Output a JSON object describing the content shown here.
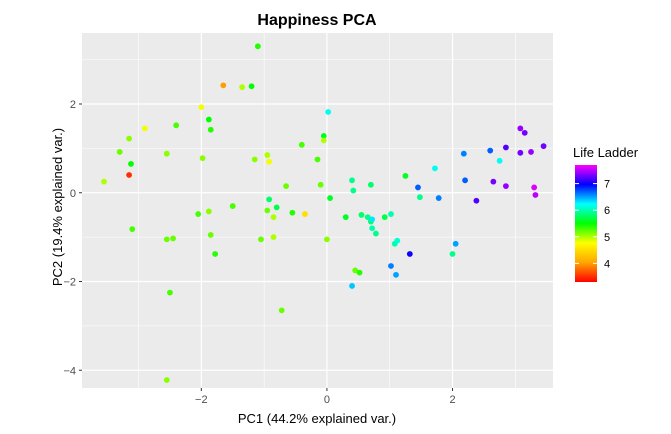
{
  "chart_data": {
    "type": "scatter",
    "title": "Happiness PCA",
    "xlabel": "PC1 (44.2% explained var.)",
    "ylabel": "PC2 (19.4% explained var.)",
    "xlim": [
      -3.9,
      3.6
    ],
    "ylim": [
      -4.4,
      3.6
    ],
    "x_ticks": [
      -2,
      0,
      2
    ],
    "y_ticks": [
      -4,
      -2,
      0,
      2
    ],
    "x_tick_labels": [
      "−2",
      "0",
      "2"
    ],
    "y_tick_labels": [
      "−4",
      "−2",
      "0",
      "2"
    ],
    "grid": true,
    "panel_background": "#ebebeb",
    "grid_color": "#ffffff",
    "legend": {
      "title": "Life Ladder",
      "position": "right",
      "range": [
        3.3,
        7.7
      ],
      "ticks": [
        4,
        5,
        6,
        7
      ],
      "tick_labels": [
        "4",
        "5",
        "6",
        "7"
      ],
      "colors": [
        "#ff0000",
        "#ffa500",
        "#ffff00",
        "#00ff00",
        "#00ffff",
        "#0000ff",
        "#ff00ff"
      ]
    },
    "points": [
      {
        "x": -3.55,
        "y": 0.25,
        "ladder": 5.0
      },
      {
        "x": -3.3,
        "y": 0.92,
        "ladder": 5.2
      },
      {
        "x": -3.15,
        "y": 1.22,
        "ladder": 5.1
      },
      {
        "x": -3.12,
        "y": 0.65,
        "ladder": 5.5
      },
      {
        "x": -3.15,
        "y": 0.4,
        "ladder": 3.5
      },
      {
        "x": -3.1,
        "y": -0.82,
        "ladder": 5.3
      },
      {
        "x": -2.9,
        "y": 1.45,
        "ladder": 4.8
      },
      {
        "x": -2.55,
        "y": 0.88,
        "ladder": 5.1
      },
      {
        "x": -2.4,
        "y": 1.52,
        "ladder": 5.3
      },
      {
        "x": -2.55,
        "y": -1.05,
        "ladder": 5.2
      },
      {
        "x": -2.45,
        "y": -1.03,
        "ladder": 5.2
      },
      {
        "x": -2.5,
        "y": -2.25,
        "ladder": 5.3
      },
      {
        "x": -2.55,
        "y": -4.22,
        "ladder": 5.1
      },
      {
        "x": -2.0,
        "y": 1.93,
        "ladder": 4.8
      },
      {
        "x": -1.98,
        "y": 0.78,
        "ladder": 5.1
      },
      {
        "x": -1.88,
        "y": 1.65,
        "ladder": 5.5
      },
      {
        "x": -1.85,
        "y": 1.42,
        "ladder": 5.4
      },
      {
        "x": -2.05,
        "y": -0.48,
        "ladder": 5.3
      },
      {
        "x": -1.88,
        "y": -0.42,
        "ladder": 5.1
      },
      {
        "x": -1.85,
        "y": -0.95,
        "ladder": 5.2
      },
      {
        "x": -1.78,
        "y": -1.38,
        "ladder": 5.4
      },
      {
        "x": -1.65,
        "y": 2.42,
        "ladder": 4.0
      },
      {
        "x": -1.5,
        "y": -0.3,
        "ladder": 5.3
      },
      {
        "x": -1.35,
        "y": 2.38,
        "ladder": 5.0
      },
      {
        "x": -1.2,
        "y": 2.4,
        "ladder": 5.5
      },
      {
        "x": -1.1,
        "y": 3.3,
        "ladder": 5.4
      },
      {
        "x": -1.15,
        "y": 0.75,
        "ladder": 5.1
      },
      {
        "x": -1.05,
        "y": -1.05,
        "ladder": 5.2
      },
      {
        "x": -0.95,
        "y": 0.85,
        "ladder": 5.0
      },
      {
        "x": -0.95,
        "y": -0.4,
        "ladder": 5.2
      },
      {
        "x": -0.85,
        "y": -0.55,
        "ladder": 5.0
      },
      {
        "x": -0.92,
        "y": 0.7,
        "ladder": 4.8
      },
      {
        "x": -0.85,
        "y": -1.0,
        "ladder": 5.0
      },
      {
        "x": -0.92,
        "y": -0.15,
        "ladder": 5.8
      },
      {
        "x": -0.8,
        "y": -0.33,
        "ladder": 5.7
      },
      {
        "x": -0.72,
        "y": -2.65,
        "ladder": 5.2
      },
      {
        "x": -0.65,
        "y": 0.15,
        "ladder": 5.2
      },
      {
        "x": -0.55,
        "y": -0.45,
        "ladder": 5.4
      },
      {
        "x": -0.35,
        "y": -0.48,
        "ladder": 4.5
      },
      {
        "x": -0.4,
        "y": 1.08,
        "ladder": 5.3
      },
      {
        "x": -0.15,
        "y": 0.75,
        "ladder": 5.3
      },
      {
        "x": -0.1,
        "y": 0.18,
        "ladder": 5.2
      },
      {
        "x": -0.05,
        "y": 1.28,
        "ladder": 5.6
      },
      {
        "x": -0.05,
        "y": 1.18,
        "ladder": 5.0
      },
      {
        "x": 0.02,
        "y": 1.82,
        "ladder": 6.2
      },
      {
        "x": 0.0,
        "y": -1.05,
        "ladder": 5.1
      },
      {
        "x": 0.05,
        "y": -0.12,
        "ladder": 5.6
      },
      {
        "x": 0.3,
        "y": -0.55,
        "ladder": 5.6
      },
      {
        "x": 0.4,
        "y": 0.28,
        "ladder": 5.9
      },
      {
        "x": 0.42,
        "y": 0.05,
        "ladder": 5.9
      },
      {
        "x": 0.45,
        "y": -1.75,
        "ladder": 5.2
      },
      {
        "x": 0.52,
        "y": -1.8,
        "ladder": 5.4
      },
      {
        "x": 0.4,
        "y": -2.1,
        "ladder": 6.4
      },
      {
        "x": 0.55,
        "y": -0.5,
        "ladder": 5.8
      },
      {
        "x": 0.65,
        "y": -0.55,
        "ladder": 5.9
      },
      {
        "x": 0.7,
        "y": -0.65,
        "ladder": 5.8
      },
      {
        "x": 0.72,
        "y": -0.6,
        "ladder": 6.3
      },
      {
        "x": 0.72,
        "y": -0.8,
        "ladder": 6.0
      },
      {
        "x": 0.7,
        "y": 0.18,
        "ladder": 5.8
      },
      {
        "x": 0.78,
        "y": -0.92,
        "ladder": 5.9
      },
      {
        "x": 0.92,
        "y": -0.55,
        "ladder": 5.7
      },
      {
        "x": 1.02,
        "y": -0.48,
        "ladder": 6.0
      },
      {
        "x": 1.08,
        "y": -1.15,
        "ladder": 6.0
      },
      {
        "x": 1.12,
        "y": -1.08,
        "ladder": 6.1
      },
      {
        "x": 1.02,
        "y": -1.65,
        "ladder": 6.6
      },
      {
        "x": 1.1,
        "y": -1.85,
        "ladder": 6.5
      },
      {
        "x": 1.25,
        "y": 0.38,
        "ladder": 5.6
      },
      {
        "x": 1.32,
        "y": -1.38,
        "ladder": 7.0
      },
      {
        "x": 1.45,
        "y": 0.12,
        "ladder": 6.7
      },
      {
        "x": 1.48,
        "y": -0.1,
        "ladder": 5.9
      },
      {
        "x": 1.72,
        "y": 0.55,
        "ladder": 6.2
      },
      {
        "x": 1.78,
        "y": -0.12,
        "ladder": 6.6
      },
      {
        "x": 2.0,
        "y": -1.38,
        "ladder": 5.9
      },
      {
        "x": 2.05,
        "y": -1.15,
        "ladder": 6.5
      },
      {
        "x": 2.18,
        "y": 0.88,
        "ladder": 6.6
      },
      {
        "x": 2.2,
        "y": 0.28,
        "ladder": 6.7
      },
      {
        "x": 2.38,
        "y": -0.18,
        "ladder": 7.2
      },
      {
        "x": 2.6,
        "y": 0.95,
        "ladder": 6.7
      },
      {
        "x": 2.65,
        "y": 0.25,
        "ladder": 7.3
      },
      {
        "x": 2.75,
        "y": 0.72,
        "ladder": 6.2
      },
      {
        "x": 2.85,
        "y": 1.02,
        "ladder": 7.2
      },
      {
        "x": 2.85,
        "y": 0.15,
        "ladder": 7.4
      },
      {
        "x": 3.08,
        "y": 1.45,
        "ladder": 7.4
      },
      {
        "x": 3.15,
        "y": 1.35,
        "ladder": 7.3
      },
      {
        "x": 3.08,
        "y": 0.9,
        "ladder": 7.3
      },
      {
        "x": 3.25,
        "y": 0.92,
        "ladder": 7.4
      },
      {
        "x": 3.3,
        "y": 0.12,
        "ladder": 7.6
      },
      {
        "x": 3.32,
        "y": -0.05,
        "ladder": 7.5
      },
      {
        "x": 3.45,
        "y": 1.05,
        "ladder": 7.3
      }
    ]
  }
}
